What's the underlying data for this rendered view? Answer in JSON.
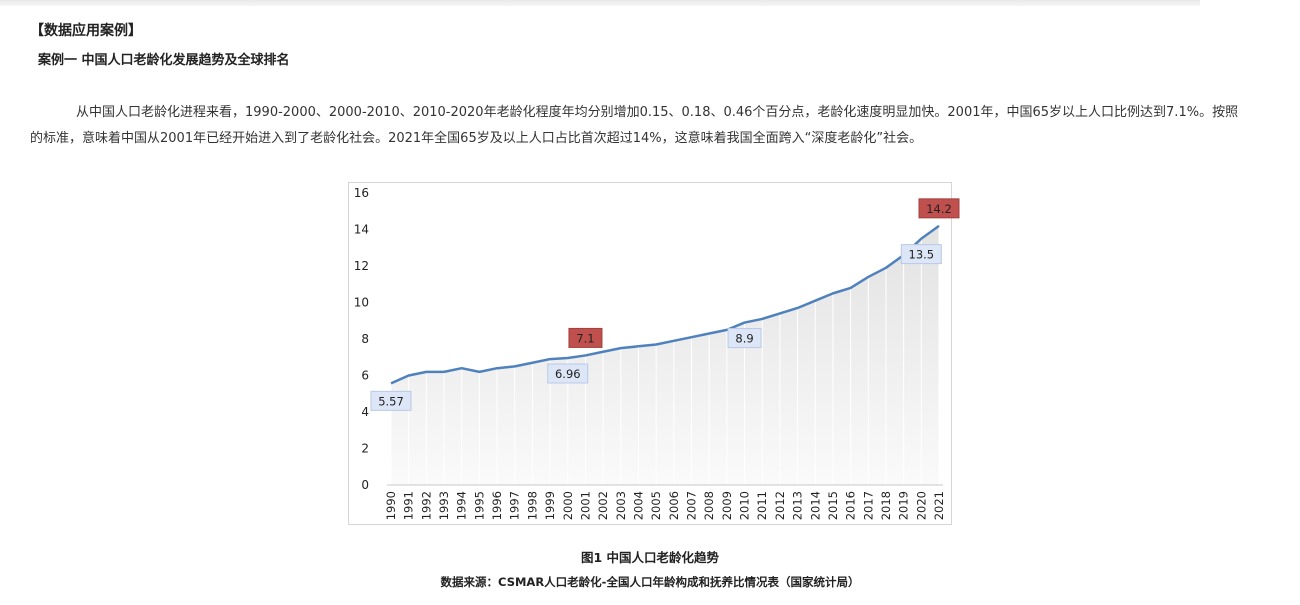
{
  "section_title": "【数据应用案例】",
  "case_title": "案例一 中国人口老龄化发展趋势及全球排名",
  "paragraph": {
    "line1": "从中国人口老龄化进程来看，1990-2000、2000-2010、2010-2020年老龄化程度年均分别增加0.15、0.18、0.46个百分点，老龄化速度明显加快。2001年，中国65岁以上人口比例达到7.1%。按照",
    "line2": "的标准，意味着中国从2001年已经开始进入到了老龄化社会。2021年全国65岁及以上人口占比首次超过14%，这意味着我国全面跨入“深度老龄化”社会。"
  },
  "figure": {
    "caption": "图1  中国人口老龄化趋势",
    "source": "数据来源：CSMAR人口老龄化-全国人口年龄构成和抚养比情况表（国家统计局）"
  },
  "chart_data": {
    "type": "area",
    "title": "",
    "xlabel": "",
    "ylabel": "",
    "x": [
      "1990",
      "1991",
      "1992",
      "1993",
      "1994",
      "1995",
      "1996",
      "1997",
      "1998",
      "1999",
      "2000",
      "2001",
      "2002",
      "2003",
      "2004",
      "2005",
      "2006",
      "2007",
      "2008",
      "2009",
      "2010",
      "2011",
      "2012",
      "2013",
      "2014",
      "2015",
      "2016",
      "2017",
      "2018",
      "2019",
      "2020",
      "2021"
    ],
    "series": [
      {
        "values": [
          5.57,
          6.0,
          6.2,
          6.2,
          6.4,
          6.2,
          6.4,
          6.5,
          6.7,
          6.9,
          6.96,
          7.1,
          7.3,
          7.5,
          7.6,
          7.7,
          7.9,
          8.1,
          8.3,
          8.5,
          8.9,
          9.1,
          9.4,
          9.7,
          10.1,
          10.5,
          10.8,
          11.4,
          11.9,
          12.6,
          13.5,
          14.2
        ]
      }
    ],
    "ylim": [
      0,
      16
    ],
    "yticks": [
      0,
      2,
      4,
      6,
      8,
      10,
      12,
      14,
      16
    ],
    "grid": "vertical lines at each year",
    "labels": [
      {
        "index": 0,
        "text": "5.57",
        "style": "blue"
      },
      {
        "index": 10,
        "text": "6.96",
        "style": "blue"
      },
      {
        "index": 11,
        "text": "7.1",
        "style": "red"
      },
      {
        "index": 20,
        "text": "8.9",
        "style": "blue"
      },
      {
        "index": 30,
        "text": "13.5",
        "style": "blue"
      },
      {
        "index": 31,
        "text": "14.2",
        "style": "red"
      }
    ],
    "colors": {
      "line": "#4f81bd",
      "fill_top": "#e3e3e3",
      "red_label": "#c0504d",
      "blue_label": "#dce6f7"
    }
  }
}
